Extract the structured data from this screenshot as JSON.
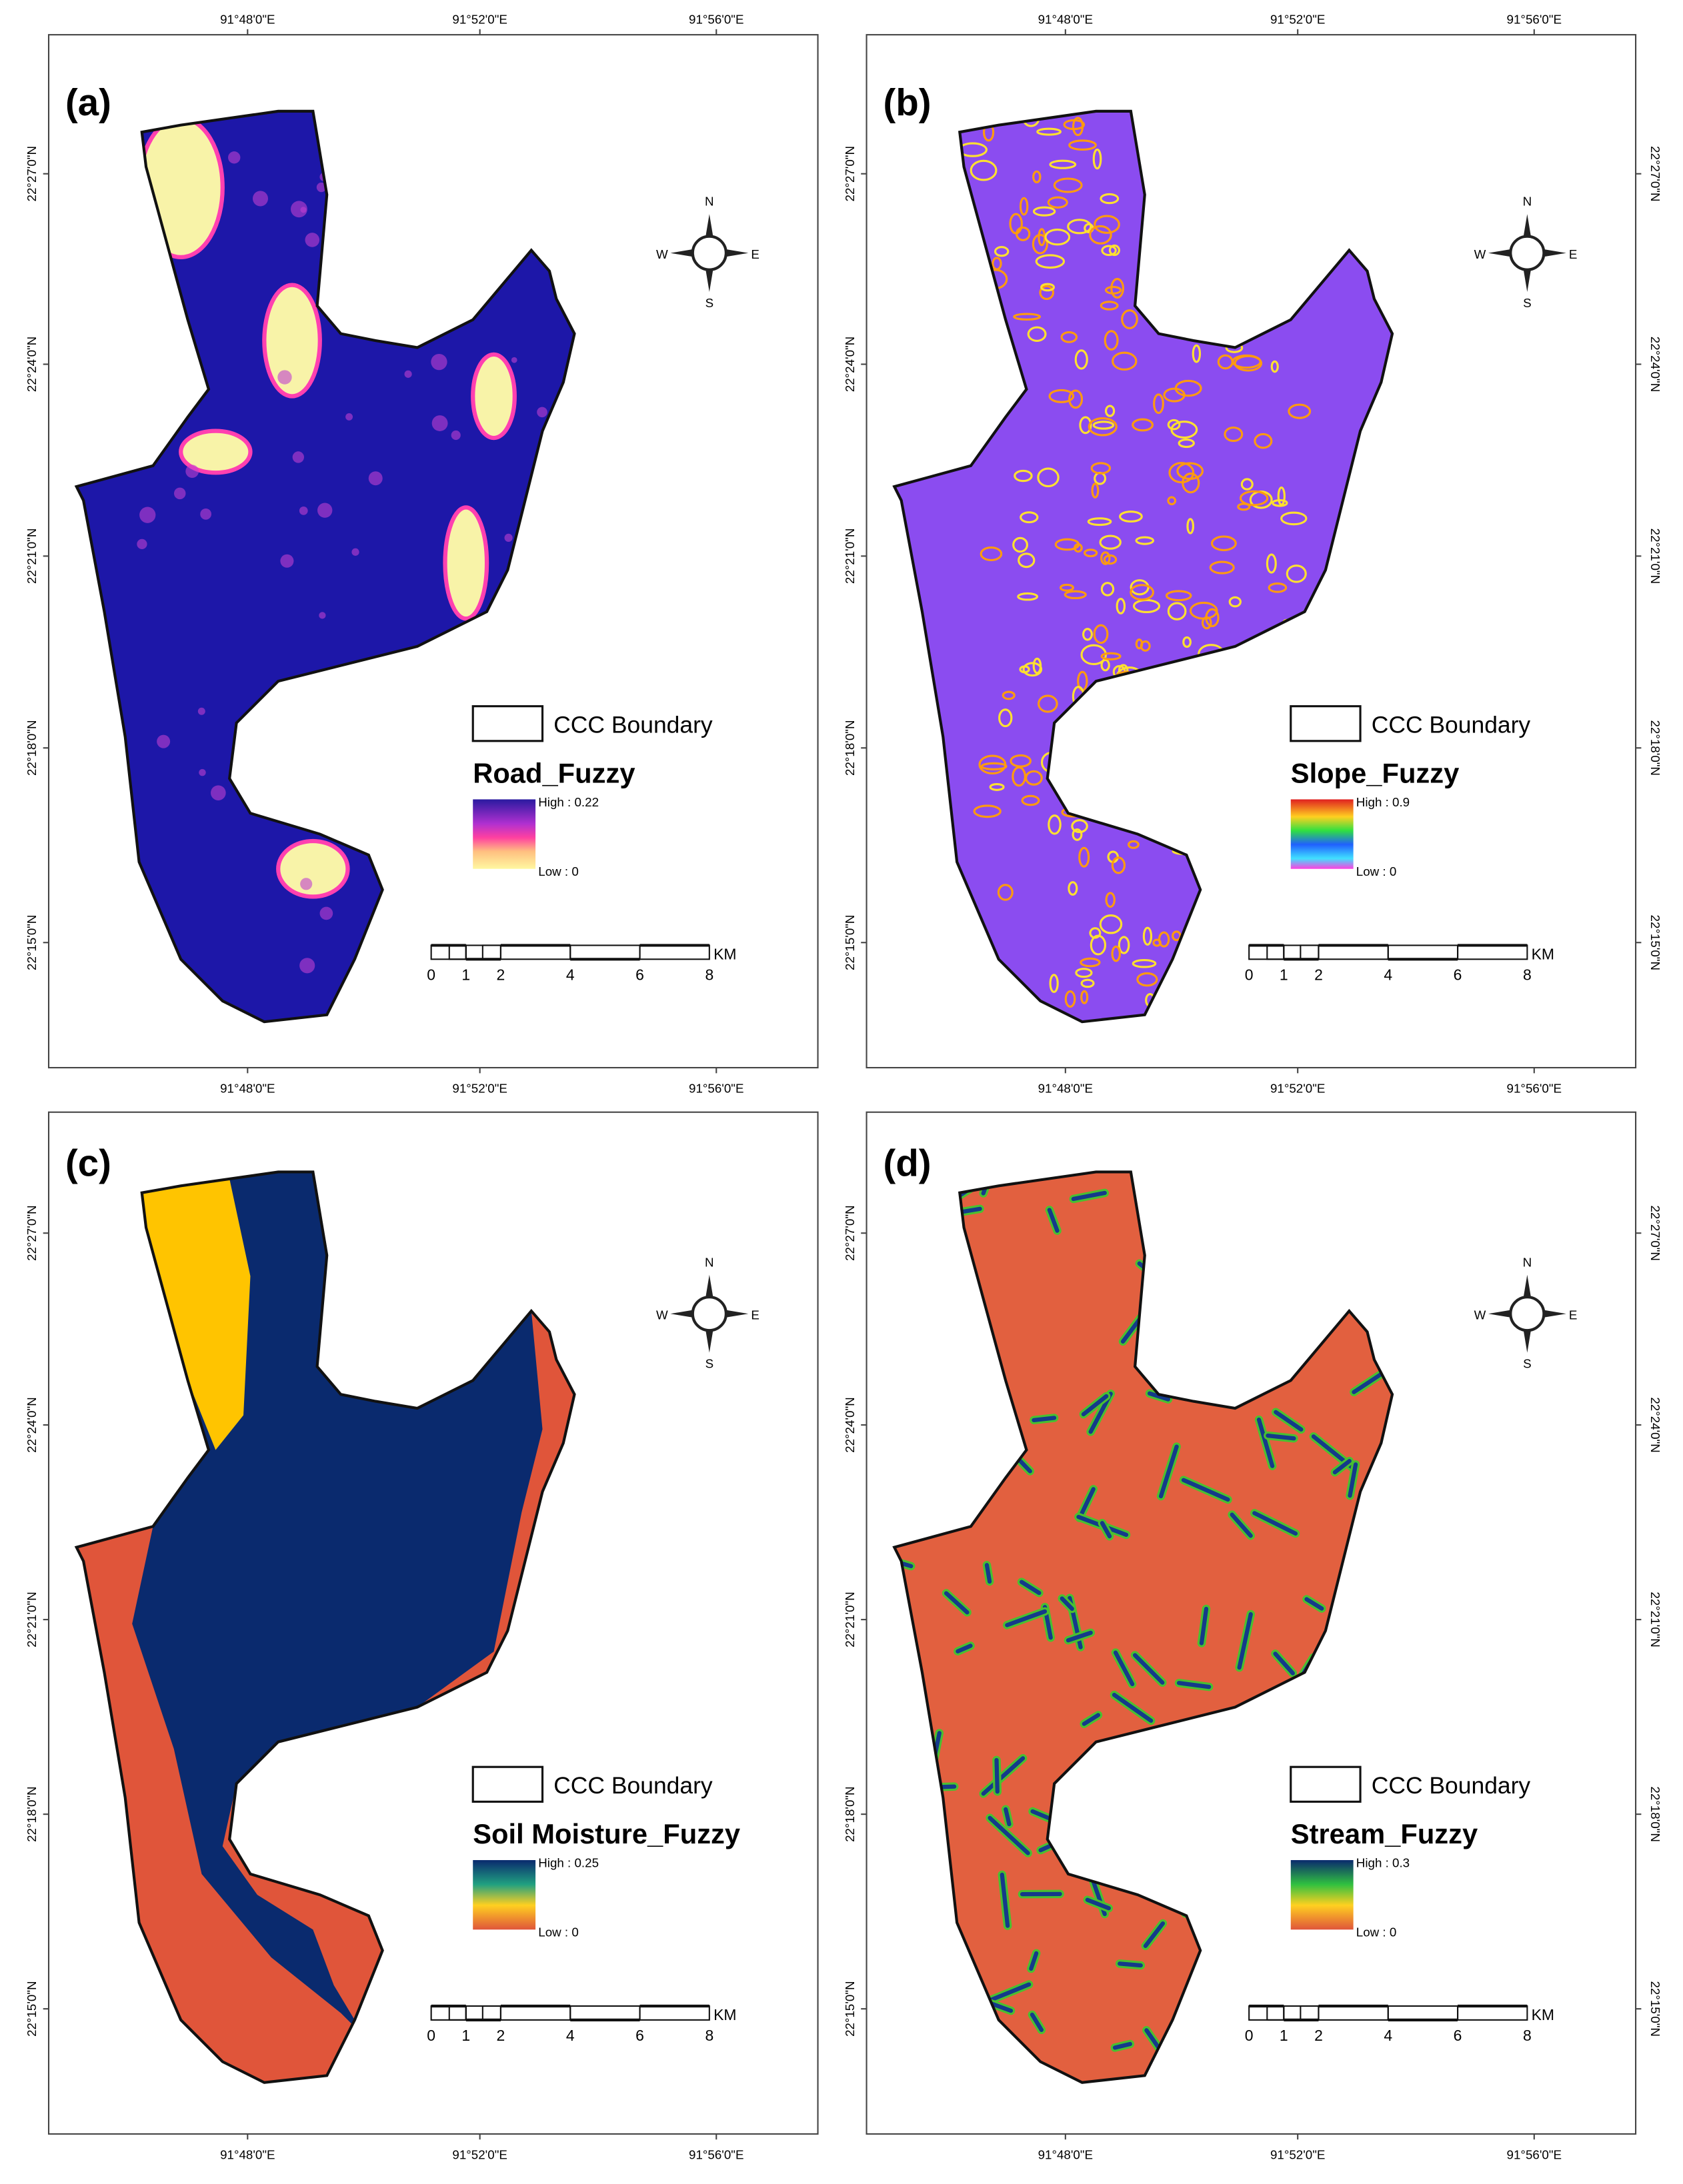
{
  "panels": [
    {
      "label": "(a)",
      "legend_title": "Road_Fuzzy",
      "boundary_label": "CCC Boundary",
      "high_label": "High : 0.22",
      "low_label": "Low : 0",
      "lon_labels_top": [
        "91°48'0\"E",
        "91°52'0\"E",
        "91°56'0\"E"
      ],
      "lon_labels_bottom": [
        "91°48'0\"E",
        "91°52'0\"E",
        "91°56'0\"E"
      ],
      "lat_labels_left": [
        "22°27'0\"N",
        "22°24'0\"N",
        "22°21'0\"N",
        "22°18'0\"N",
        "22°15'0\"N"
      ],
      "compass": {
        "n": "N",
        "s": "S",
        "e": "E",
        "w": "W"
      },
      "scale_labels": [
        "0",
        "1",
        "2",
        "4",
        "6",
        "8"
      ],
      "scale_unit": "KM"
    },
    {
      "label": "(b)",
      "legend_title": "Slope_Fuzzy",
      "boundary_label": "CCC Boundary",
      "high_label": "High : 0.9",
      "low_label": "Low : 0",
      "lon_labels_top": [
        "91°48'0\"E",
        "91°52'0\"E",
        "91°56'0\"E"
      ],
      "lon_labels_bottom": [
        "91°48'0\"E",
        "91°52'0\"E",
        "91°56'0\"E"
      ],
      "lat_labels_left": [
        "22°27'0\"N",
        "22°24'0\"N",
        "22°21'0\"N",
        "22°18'0\"N",
        "22°15'0\"N"
      ],
      "lat_labels_right": [
        "22°27'0\"N",
        "22°24'0\"N",
        "22°21'0\"N",
        "22°18'0\"N",
        "22°15'0\"N"
      ],
      "compass": {
        "n": "N",
        "s": "S",
        "e": "E",
        "w": "W"
      },
      "scale_labels": [
        "0",
        "1",
        "2",
        "4",
        "6",
        "8"
      ],
      "scale_unit": "KM"
    },
    {
      "label": "(c)",
      "legend_title": "Soil Moisture_Fuzzy",
      "boundary_label": "CCC Boundary",
      "high_label": "High : 0.25",
      "low_label": "Low : 0",
      "lon_labels_bottom": [
        "91°48'0\"E",
        "91°52'0\"E",
        "91°56'0\"E"
      ],
      "lat_labels_left": [
        "22°27'0\"N",
        "22°24'0\"N",
        "22°21'0\"N",
        "22°18'0\"N",
        "22°15'0\"N"
      ],
      "compass": {
        "n": "N",
        "s": "S",
        "e": "E",
        "w": "W"
      },
      "scale_labels": [
        "0",
        "1",
        "2",
        "4",
        "6",
        "8"
      ],
      "scale_unit": "KM"
    },
    {
      "label": "(d)",
      "legend_title": "Stream_Fuzzy",
      "boundary_label": "CCC Boundary",
      "high_label": "High : 0.3",
      "low_label": "Low : 0",
      "lon_labels_bottom": [
        "91°48'0\"E",
        "91°52'0\"E",
        "91°56'0\"E"
      ],
      "lat_labels_left": [
        "22°27'0\"N",
        "22°24'0\"N",
        "22°21'0\"N",
        "22°18'0\"N",
        "22°15'0\"N"
      ],
      "lat_labels_right": [
        "22°27'0\"N",
        "22°24'0\"N",
        "22°21'0\"N",
        "22°18'0\"N",
        "22°15'0\"N"
      ],
      "compass": {
        "n": "N",
        "s": "S",
        "e": "E",
        "w": "W"
      },
      "scale_labels": [
        "0",
        "1",
        "2",
        "4",
        "6",
        "8"
      ],
      "scale_unit": "KM"
    }
  ]
}
